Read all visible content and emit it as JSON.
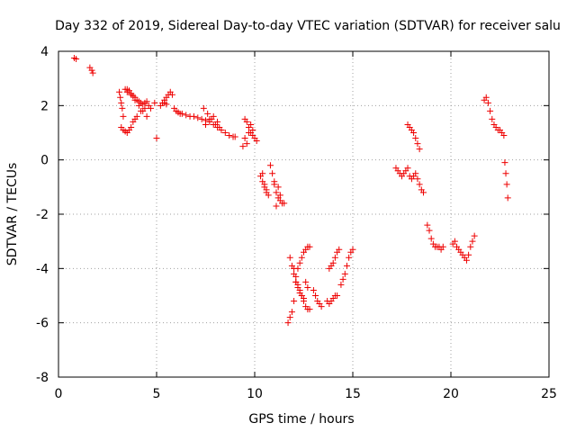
{
  "chart_data": {
    "type": "scatter",
    "title": "Day 332 of 2019, Sidereal Day-to-day VTEC variation (SDTVAR) for receiver salu",
    "xlabel": "GPS time / hours",
    "ylabel": "SDTVAR / TECUs",
    "xlim": [
      0,
      25
    ],
    "ylim": [
      -8,
      4
    ],
    "xticks": [
      0,
      5,
      10,
      15,
      20,
      25
    ],
    "xtick_labels": [
      "0",
      "5",
      "10",
      "15",
      "20",
      "25"
    ],
    "yticks": [
      -8,
      -6,
      -4,
      -2,
      0,
      2,
      4
    ],
    "ytick_labels": [
      "-8",
      "-6",
      "-4",
      "-2",
      "0",
      "2",
      "4"
    ],
    "grid": true,
    "marker": "+",
    "color": "#ee0000",
    "series": [
      {
        "name": "SDTVAR",
        "x": [
          0.8,
          0.9,
          1.6,
          1.7,
          1.75,
          3.1,
          3.15,
          3.2,
          3.25,
          3.3,
          3.4,
          3.5,
          3.6,
          3.7,
          3.8,
          3.9,
          4.0,
          4.1,
          4.2,
          4.3,
          4.4,
          4.5,
          3.2,
          3.3,
          3.4,
          3.5,
          3.6,
          3.7,
          3.8,
          3.9,
          4.0,
          4.2,
          4.4,
          4.6,
          3.5,
          3.7,
          3.9,
          4.1,
          4.3,
          4.5,
          4.7,
          4.9,
          5.0,
          5.2,
          5.3,
          5.4,
          5.5,
          5.6,
          5.7,
          5.8,
          5.5,
          5.4,
          5.9,
          6.0,
          6.1,
          6.2,
          6.3,
          6.5,
          6.7,
          6.9,
          7.1,
          7.3,
          7.5,
          7.7,
          7.9,
          8.1,
          8.3,
          8.5,
          8.7,
          8.9,
          9.0,
          7.4,
          7.6,
          7.8,
          8.0,
          8.2,
          7.5,
          7.7,
          7.9,
          8.1,
          9.5,
          9.6,
          9.7,
          9.8,
          9.9,
          10.0,
          10.1,
          9.5,
          9.6,
          9.7,
          9.8,
          9.9,
          9.4,
          10.3,
          10.4,
          10.5,
          10.6,
          10.7,
          10.4,
          10.5,
          10.6,
          10.8,
          10.9,
          11.0,
          11.1,
          11.2,
          11.3,
          11.4,
          11.5,
          11.0,
          11.1,
          11.2,
          11.3,
          11.7,
          11.8,
          11.9,
          12.0,
          12.1,
          12.2,
          12.3,
          12.4,
          12.5,
          12.6,
          12.7,
          12.8,
          11.8,
          11.9,
          12.0,
          12.1,
          12.2,
          12.3,
          12.4,
          12.5,
          12.6,
          12.7,
          12.8,
          12.0,
          12.1,
          12.2,
          12.3,
          12.4,
          12.5,
          12.6,
          12.7,
          13.0,
          13.1,
          13.2,
          13.3,
          13.4,
          13.7,
          13.8,
          13.9,
          14.0,
          14.1,
          14.2,
          13.8,
          13.9,
          14.0,
          14.1,
          14.2,
          14.3,
          14.4,
          14.5,
          14.6,
          14.7,
          14.8,
          14.9,
          15.0,
          17.2,
          17.3,
          17.4,
          17.5,
          17.6,
          17.7,
          17.8,
          17.9,
          18.0,
          18.1,
          18.2,
          18.3,
          18.4,
          18.5,
          18.6,
          17.8,
          17.9,
          18.0,
          18.1,
          18.2,
          18.3,
          18.4,
          18.8,
          18.9,
          19.0,
          19.1,
          19.2,
          19.3,
          19.4,
          19.5,
          19.6,
          20.1,
          20.2,
          20.3,
          20.4,
          20.5,
          20.6,
          20.7,
          20.8,
          20.9,
          21.0,
          21.1,
          21.2,
          21.7,
          21.8,
          21.9,
          22.0,
          22.1,
          22.2,
          22.3,
          22.4,
          22.5,
          22.6,
          22.7,
          22.75,
          22.8,
          22.85,
          22.9
        ],
        "y": [
          3.75,
          3.72,
          3.4,
          3.3,
          3.2,
          2.5,
          2.3,
          2.1,
          1.9,
          1.6,
          2.6,
          2.6,
          2.55,
          2.45,
          2.35,
          2.3,
          2.2,
          2.15,
          2.1,
          2.05,
          2.1,
          2.15,
          1.2,
          1.1,
          1.05,
          1.0,
          1.1,
          1.2,
          1.4,
          1.5,
          1.6,
          1.8,
          1.9,
          2.0,
          2.5,
          2.4,
          2.2,
          2.0,
          1.8,
          1.6,
          1.9,
          2.1,
          0.8,
          2.0,
          2.1,
          2.2,
          2.3,
          2.4,
          2.5,
          2.4,
          2.05,
          2.1,
          1.9,
          1.8,
          1.75,
          1.7,
          1.7,
          1.65,
          1.6,
          1.6,
          1.55,
          1.5,
          1.45,
          1.4,
          1.3,
          1.2,
          1.1,
          1.0,
          0.9,
          0.85,
          0.85,
          1.9,
          1.7,
          1.5,
          1.3,
          1.2,
          1.3,
          1.5,
          1.6,
          1.4,
          1.5,
          1.4,
          1.2,
          1.0,
          0.9,
          0.8,
          0.7,
          0.8,
          0.6,
          1.0,
          1.3,
          1.1,
          0.5,
          -0.6,
          -0.8,
          -1.0,
          -1.2,
          -1.3,
          -0.5,
          -0.9,
          -1.1,
          -0.2,
          -0.5,
          -0.9,
          -1.2,
          -1.4,
          -1.5,
          -1.6,
          -1.6,
          -0.8,
          -1.7,
          -1.0,
          -1.3,
          -6.0,
          -5.8,
          -5.6,
          -5.2,
          -4.5,
          -4.0,
          -3.8,
          -3.6,
          -3.4,
          -3.3,
          -3.2,
          -3.2,
          -3.6,
          -3.9,
          -4.2,
          -4.5,
          -4.7,
          -4.9,
          -5.0,
          -5.2,
          -5.4,
          -5.5,
          -5.5,
          -4.0,
          -4.3,
          -4.6,
          -4.8,
          -5.0,
          -5.1,
          -4.5,
          -4.7,
          -4.8,
          -5.0,
          -5.2,
          -5.3,
          -5.4,
          -5.2,
          -5.3,
          -5.2,
          -5.1,
          -5.0,
          -5.0,
          -4.0,
          -3.9,
          -3.8,
          -3.6,
          -3.4,
          -3.3,
          -4.6,
          -4.4,
          -4.2,
          -3.9,
          -3.6,
          -3.4,
          -3.3,
          -0.3,
          -0.4,
          -0.5,
          -0.6,
          -0.5,
          -0.4,
          -0.3,
          -0.6,
          -0.7,
          -0.6,
          -0.5,
          -0.7,
          -0.9,
          -1.1,
          -1.2,
          1.3,
          1.2,
          1.1,
          1.0,
          0.8,
          0.6,
          0.4,
          -2.4,
          -2.6,
          -2.9,
          -3.1,
          -3.2,
          -3.2,
          -3.2,
          -3.3,
          -3.2,
          -3.1,
          -3.0,
          -3.2,
          -3.3,
          -3.4,
          -3.5,
          -3.6,
          -3.7,
          -3.5,
          -3.2,
          -3.0,
          -2.8,
          2.2,
          2.3,
          2.1,
          1.8,
          1.5,
          1.3,
          1.2,
          1.1,
          1.1,
          1.0,
          0.9,
          -0.1,
          -0.5,
          -0.9,
          -1.4
        ]
      }
    ]
  }
}
